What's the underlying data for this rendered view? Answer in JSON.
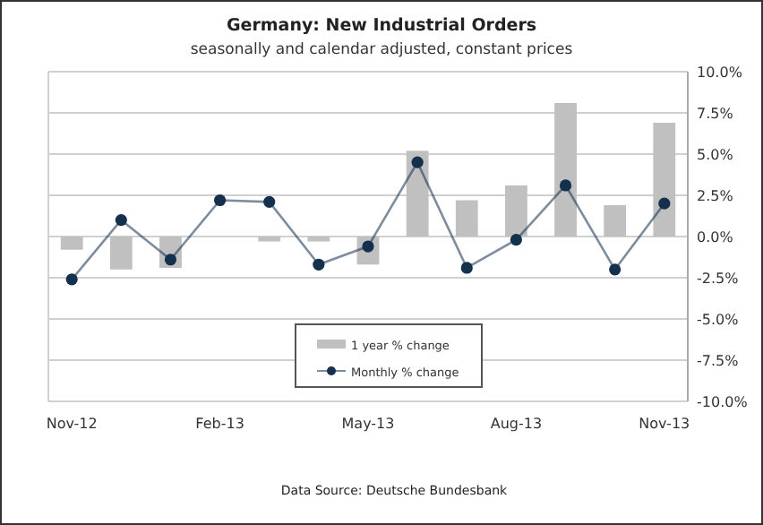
{
  "chart_data": {
    "type": "bar",
    "title": "Germany: New Industrial Orders",
    "subtitle": "seasonally and calendar adjusted, constant prices",
    "annotations": [
      "Data Source: Deutsche Bundesbank"
    ],
    "categories": [
      "Nov-12",
      null,
      null,
      "Feb-13",
      null,
      null,
      "May-13",
      null,
      null,
      "Aug-13",
      null,
      null,
      "Nov-13"
    ],
    "series": [
      {
        "name": "1 year % change",
        "color": "#c0c0c0",
        "values": [
          -0.8,
          -2.0,
          -1.9,
          0,
          -0.3,
          -0.3,
          -1.7,
          5.2,
          2.2,
          3.1,
          8.1,
          1.9,
          6.9
        ]
      },
      {
        "name": "Monthly % change",
        "type": "line",
        "color": "#13304f",
        "values": [
          -2.6,
          1.0,
          -1.4,
          2.2,
          2.1,
          -1.7,
          -0.6,
          4.5,
          -1.9,
          -0.2,
          3.1,
          -2.0,
          2.0
        ]
      }
    ],
    "ylim": [
      -10,
      10
    ],
    "yticks": [
      {
        "value": -10,
        "label": "-10.0%"
      },
      {
        "value": -7.5,
        "label": "-7.5%"
      },
      {
        "value": -5,
        "label": "-5.0%"
      },
      {
        "value": -2.5,
        "label": "-2.5%"
      },
      {
        "value": 0,
        "label": "0.0%"
      },
      {
        "value": 2.5,
        "label": "2.5%"
      },
      {
        "value": 5,
        "label": "5.0%"
      },
      {
        "value": 7.5,
        "label": "7.5%"
      },
      {
        "value": 10,
        "label": "10.0%"
      }
    ],
    "grid": "y",
    "legend": "bottom",
    "marker": "circle",
    "line_style": "solid"
  }
}
